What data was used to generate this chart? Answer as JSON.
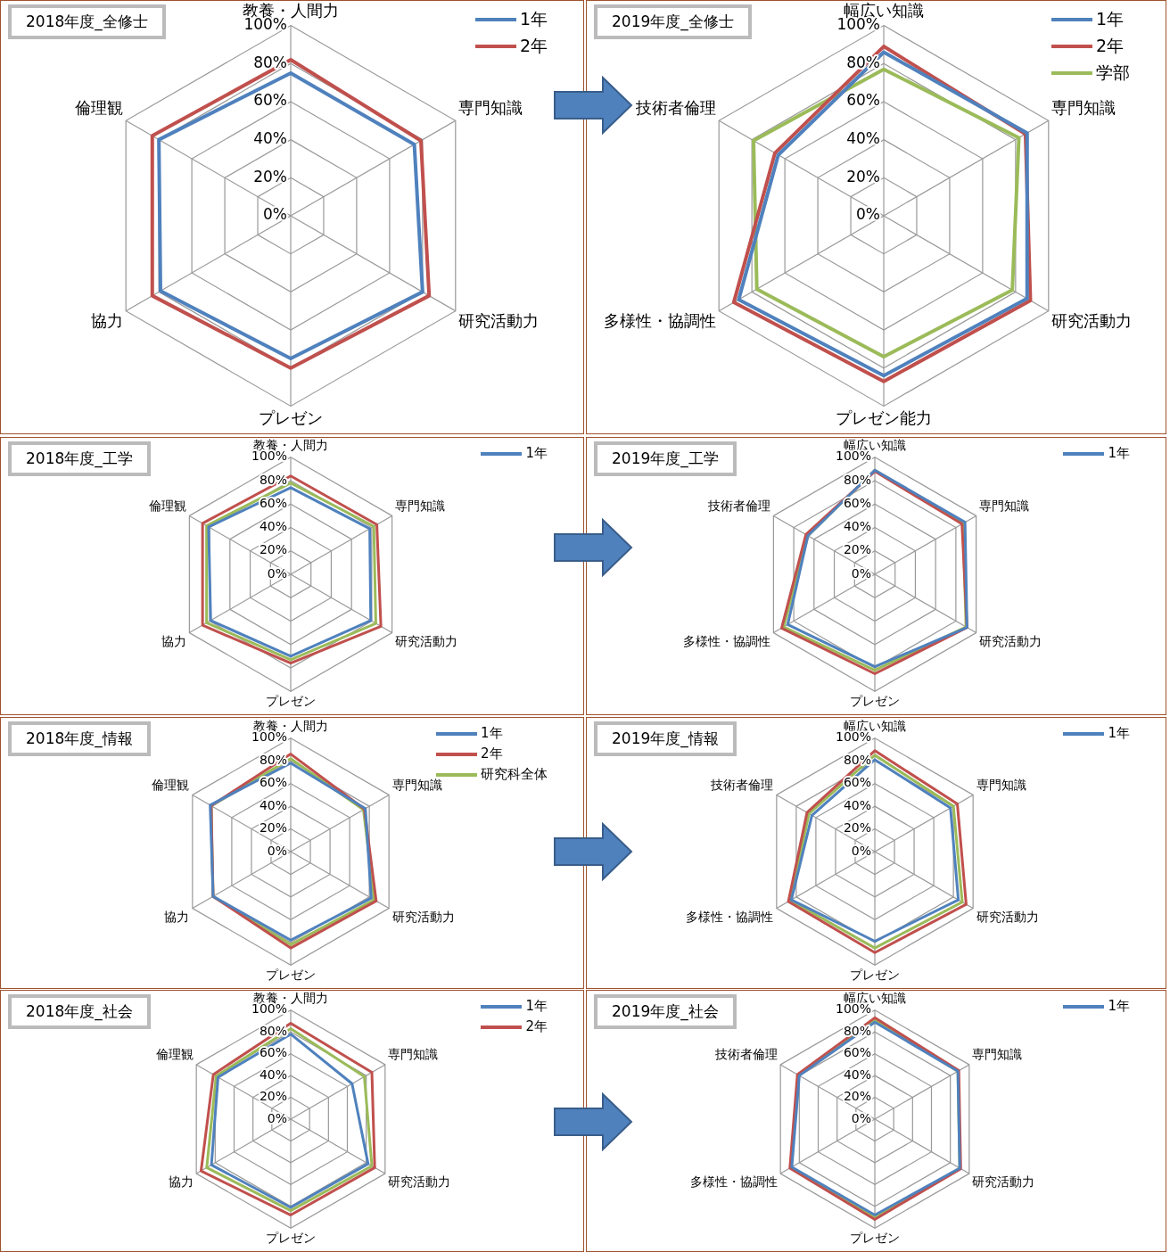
{
  "chart_data": [
    {
      "type": "radar",
      "title": "2018年度_全修士",
      "categories": [
        "教養・人間力",
        "専門知識",
        "研究活動力",
        "プレゼン",
        "協力",
        "倫理観"
      ],
      "ylim": [
        0,
        100
      ],
      "yticks": [
        {
          "value": 0,
          "label": "0%"
        },
        {
          "value": 20,
          "label": "20%"
        },
        {
          "value": 40,
          "label": "40%"
        },
        {
          "value": 60,
          "label": "60%"
        },
        {
          "value": 80,
          "label": "80%"
        },
        {
          "value": 100,
          "label": "100%"
        }
      ],
      "grid": true,
      "legend": "top right",
      "series": [
        {
          "name": "1年",
          "color": "#4f81bd",
          "values": [
            75,
            75,
            80,
            75,
            79,
            80
          ]
        },
        {
          "name": "2年",
          "color": "#c0504d",
          "values": [
            82,
            79,
            84,
            80,
            84,
            84
          ]
        }
      ]
    },
    {
      "type": "radar",
      "title": "2019年度_全修士",
      "categories": [
        "幅広い知識",
        "専門知識",
        "研究活動力",
        "プレゼン能力",
        "多様性・協調性",
        "技術者倫理"
      ],
      "ylim": [
        0,
        100
      ],
      "yticks": [
        {
          "value": 0,
          "label": "0%"
        },
        {
          "value": 20,
          "label": "20%"
        },
        {
          "value": 40,
          "label": "40%"
        },
        {
          "value": 60,
          "label": "60%"
        },
        {
          "value": 80,
          "label": "80%"
        },
        {
          "value": 100,
          "label": "100%"
        }
      ],
      "grid": true,
      "legend": "top right",
      "series": [
        {
          "name": "1年",
          "color": "#4f81bd",
          "values": [
            86,
            87,
            87,
            84,
            88,
            64
          ]
        },
        {
          "name": "2年",
          "color": "#c0504d",
          "values": [
            89,
            86,
            89,
            87,
            91,
            66
          ]
        },
        {
          "name": "学部",
          "color": "#9bbb59",
          "values": [
            77,
            82,
            78,
            74,
            77,
            79
          ]
        }
      ]
    },
    {
      "type": "radar",
      "title": "2018年度_工学",
      "categories": [
        "教養・人間力",
        "専門知識",
        "研究活動力",
        "プレゼン",
        "協力",
        "倫理観"
      ],
      "ylim": [
        0,
        100
      ],
      "yticks": [
        {
          "value": 0,
          "label": "0%"
        },
        {
          "value": 20,
          "label": "20%"
        },
        {
          "value": 40,
          "label": "40%"
        },
        {
          "value": 60,
          "label": "60%"
        },
        {
          "value": 80,
          "label": "80%"
        },
        {
          "value": 100,
          "label": "100%"
        }
      ],
      "grid": true,
      "legend": "top right",
      "series": [
        {
          "name": "1年",
          "color": "#4f81bd",
          "values": [
            74,
            78,
            79,
            70,
            79,
            81
          ]
        },
        {
          "color": "#c0504d",
          "values": [
            84,
            85,
            89,
            76,
            87,
            87
          ]
        },
        {
          "color": "#9bbb59",
          "values": [
            78,
            82,
            84,
            73,
            83,
            83
          ]
        }
      ]
    },
    {
      "type": "radar",
      "title": "2019年度_工学",
      "categories": [
        "幅広い知識",
        "専門知識",
        "研究活動力",
        "プレゼン",
        "多様性・協調性",
        "技術者倫理"
      ],
      "ylim": [
        0,
        100
      ],
      "yticks": [
        {
          "value": 0,
          "label": "0%"
        },
        {
          "value": 20,
          "label": "20%"
        },
        {
          "value": 40,
          "label": "40%"
        },
        {
          "value": 60,
          "label": "60%"
        },
        {
          "value": 80,
          "label": "80%"
        },
        {
          "value": 100,
          "label": "100%"
        }
      ],
      "grid": true,
      "legend": "top right",
      "series": [
        {
          "name": "1年",
          "color": "#4f81bd",
          "values": [
            89,
            89,
            91,
            79,
            86,
            66
          ]
        },
        {
          "color": "#c0504d",
          "values": [
            88,
            86,
            91,
            85,
            92,
            68
          ]
        },
        {
          "color": "#9bbb59",
          "values": [
            89,
            87,
            90,
            82,
            90,
            66
          ]
        }
      ]
    },
    {
      "type": "radar",
      "title": "2018年度_情報",
      "categories": [
        "教養・人間力",
        "専門知識",
        "研究活動力",
        "プレゼン",
        "協力",
        "倫理観"
      ],
      "ylim": [
        0,
        100
      ],
      "yticks": [
        {
          "value": 0,
          "label": "0%"
        },
        {
          "value": 20,
          "label": "20%"
        },
        {
          "value": 40,
          "label": "40%"
        },
        {
          "value": 60,
          "label": "60%"
        },
        {
          "value": 80,
          "label": "80%"
        },
        {
          "value": 100,
          "label": "100%"
        }
      ],
      "grid": true,
      "legend": "top right",
      "series": [
        {
          "name": "1年",
          "color": "#4f81bd",
          "values": [
            78,
            76,
            82,
            78,
            79,
            82
          ]
        },
        {
          "name": "2年",
          "color": "#c0504d",
          "values": [
            86,
            75,
            87,
            85,
            79,
            81
          ]
        },
        {
          "name": "研究科全体",
          "color": "#9bbb59",
          "values": [
            82,
            74,
            85,
            82,
            79,
            81
          ]
        }
      ]
    },
    {
      "type": "radar",
      "title": "2019年度_情報",
      "categories": [
        "幅広い知識",
        "専門知識",
        "研究活動力",
        "プレゼン",
        "多様性・協調性",
        "技術者倫理"
      ],
      "ylim": [
        0,
        100
      ],
      "yticks": [
        {
          "value": 0,
          "label": "0%"
        },
        {
          "value": 20,
          "label": "20%"
        },
        {
          "value": 40,
          "label": "40%"
        },
        {
          "value": 60,
          "label": "60%"
        },
        {
          "value": 80,
          "label": "80%"
        },
        {
          "value": 100,
          "label": "100%"
        }
      ],
      "grid": true,
      "legend": "top right",
      "series": [
        {
          "name": "1年",
          "color": "#4f81bd",
          "values": [
            81,
            77,
            85,
            79,
            85,
            64
          ]
        },
        {
          "color": "#c0504d",
          "values": [
            89,
            84,
            93,
            89,
            88,
            69
          ]
        },
        {
          "color": "#9bbb59",
          "values": [
            85,
            80,
            89,
            85,
            86,
            67
          ]
        }
      ]
    },
    {
      "type": "radar",
      "title": "2018年度_社会",
      "categories": [
        "教養・人間力",
        "専門知識",
        "研究活動力",
        "プレゼン",
        "協力",
        "倫理観"
      ],
      "ylim": [
        0,
        100
      ],
      "yticks": [
        {
          "value": 0,
          "label": "0%"
        },
        {
          "value": 20,
          "label": "20%"
        },
        {
          "value": 40,
          "label": "40%"
        },
        {
          "value": 60,
          "label": "60%"
        },
        {
          "value": 80,
          "label": "80%"
        },
        {
          "value": 100,
          "label": "100%"
        }
      ],
      "grid": true,
      "legend": "top right",
      "series": [
        {
          "name": "1年",
          "color": "#4f81bd",
          "values": [
            78,
            65,
            82,
            81,
            84,
            77
          ]
        },
        {
          "name": "2年",
          "color": "#c0504d",
          "values": [
            88,
            86,
            89,
            88,
            95,
            82
          ]
        },
        {
          "color": "#9bbb59",
          "values": [
            83,
            78,
            86,
            84,
            89,
            79
          ]
        }
      ]
    },
    {
      "type": "radar",
      "title": "2019年度_社会",
      "categories": [
        "幅広い知識",
        "専門知識",
        "研究活動力",
        "プレゼン",
        "多様性・協調性",
        "技術者倫理"
      ],
      "ylim": [
        0,
        100
      ],
      "yticks": [
        {
          "value": 0,
          "label": "0%"
        },
        {
          "value": 20,
          "label": "20%"
        },
        {
          "value": 40,
          "label": "40%"
        },
        {
          "value": 60,
          "label": "60%"
        },
        {
          "value": 80,
          "label": "80%"
        },
        {
          "value": 100,
          "label": "100%"
        }
      ],
      "grid": true,
      "legend": "top right",
      "series": [
        {
          "name": "1年",
          "color": "#4f81bd",
          "values": [
            89,
            88,
            90,
            88,
            88,
            80
          ]
        },
        {
          "color": "#c0504d",
          "values": [
            93,
            89,
            91,
            92,
            90,
            82
          ]
        },
        {
          "color": "#9bbb59",
          "values": [
            91,
            88,
            90,
            90,
            89,
            81
          ]
        }
      ]
    }
  ]
}
